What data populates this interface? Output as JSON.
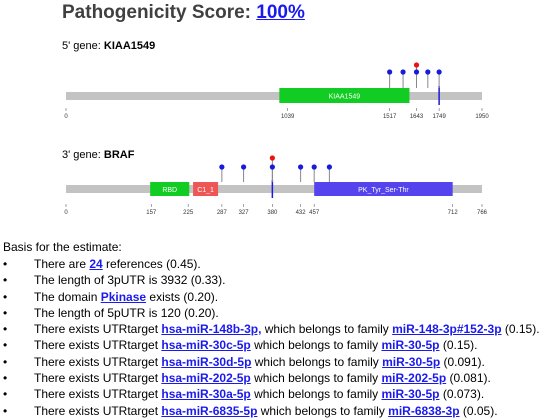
{
  "title": {
    "prefix": "Pathogenicity Score:",
    "score_link": "100%"
  },
  "gene5": {
    "prefix": "5' gene:",
    "name": "KIAA1549",
    "axis_max": 1950,
    "ticks": [
      {
        "label": "0",
        "value": 0
      },
      {
        "label": "1039",
        "value": 1039
      },
      {
        "label": "1517",
        "value": 1517
      },
      {
        "label": "1643",
        "value": 1643
      },
      {
        "label": "1749",
        "value": 1749
      },
      {
        "label": "1950",
        "value": 1950
      }
    ],
    "domains": [
      {
        "name": "KIAA1549",
        "start": 1000,
        "end": 1610,
        "color": "#11cc22"
      }
    ],
    "breakpoint": 1749,
    "lollipops": [
      {
        "pos": 1517,
        "color": "#1a1add",
        "height": 1
      },
      {
        "pos": 1580,
        "color": "#1a1add",
        "height": 1
      },
      {
        "pos": 1643,
        "color": "#ee1111",
        "height": 2
      },
      {
        "pos": 1643,
        "color": "#1a1add",
        "height": 1
      },
      {
        "pos": 1696,
        "color": "#1a1add",
        "height": 1
      },
      {
        "pos": 1749,
        "color": "#1a1add",
        "height": 1
      }
    ]
  },
  "gene3": {
    "prefix": "3' gene:",
    "name": "BRAF",
    "axis_max": 766,
    "ticks": [
      {
        "label": "0",
        "value": 0
      },
      {
        "label": "157",
        "value": 157
      },
      {
        "label": "225",
        "value": 225
      },
      {
        "label": "287",
        "value": 287
      },
      {
        "label": "327",
        "value": 327
      },
      {
        "label": "380",
        "value": 380
      },
      {
        "label": "432",
        "value": 432
      },
      {
        "label": "457",
        "value": 457
      },
      {
        "label": "712",
        "value": 712
      },
      {
        "label": "766",
        "value": 766
      }
    ],
    "domains": [
      {
        "name": "RBD",
        "start": 155,
        "end": 227,
        "color": "#11cc22"
      },
      {
        "name": "C1_1",
        "start": 234,
        "end": 280,
        "color": "#ee5555"
      },
      {
        "name": "PK_Tyr_Ser-Thr",
        "start": 457,
        "end": 712,
        "color": "#5544ee"
      }
    ],
    "breakpoint": 380,
    "lollipops": [
      {
        "pos": 287,
        "color": "#1a1add",
        "height": 1
      },
      {
        "pos": 327,
        "color": "#1a1add",
        "height": 1
      },
      {
        "pos": 380,
        "color": "#ee1111",
        "height": 2
      },
      {
        "pos": 380,
        "color": "#1a1add",
        "height": 1
      },
      {
        "pos": 432,
        "color": "#1a1add",
        "height": 1
      },
      {
        "pos": 457,
        "color": "#1a1add",
        "height": 1
      },
      {
        "pos": 485,
        "color": "#1a1add",
        "height": 1
      }
    ]
  },
  "basis": {
    "header": "Basis for the estimate:",
    "bullet": "•",
    "items": [
      {
        "pre": "There are ",
        "link": "24",
        "post": " references (0.45)."
      },
      {
        "pre": "The length of 3pUTR is 3932 (0.33)."
      },
      {
        "pre": "The domain ",
        "link": "Pkinase",
        "post": " exists (0.20)."
      },
      {
        "pre": "The length of 5pUTR is 120 (0.20)."
      },
      {
        "pre": "There exists UTRtarget ",
        "link": "hsa-miR-148b-3p,",
        "mid": " which belongs to family ",
        "link2": "miR-148-3p#152-3p",
        "post": " (0.15)."
      },
      {
        "pre": "There exists UTRtarget ",
        "link": "hsa-miR-30c-5p",
        "mid": " which belongs to family ",
        "link2": "miR-30-5p",
        "post": " (0.15)."
      },
      {
        "pre": "There exists UTRtarget ",
        "link": "hsa-miR-30d-5p",
        "mid": " which belongs to family ",
        "link2": "miR-30-5p",
        "post": " (0.091)."
      },
      {
        "pre": "There exists UTRtarget ",
        "link": "hsa-miR-202-5p",
        "mid": " which belongs to family ",
        "link2": "miR-202-5p",
        "post": " (0.081)."
      },
      {
        "pre": "There exists UTRtarget ",
        "link": "hsa-miR-30a-5p",
        "mid": " which belongs to family ",
        "link2": "miR-30-5p",
        "post": " (0.073)."
      },
      {
        "pre": "There exists UTRtarget ",
        "link": "hsa-miR-6835-5p",
        "mid": " which belongs to family ",
        "link2": "miR-6838-3p",
        "post": " (0.05)."
      }
    ]
  }
}
